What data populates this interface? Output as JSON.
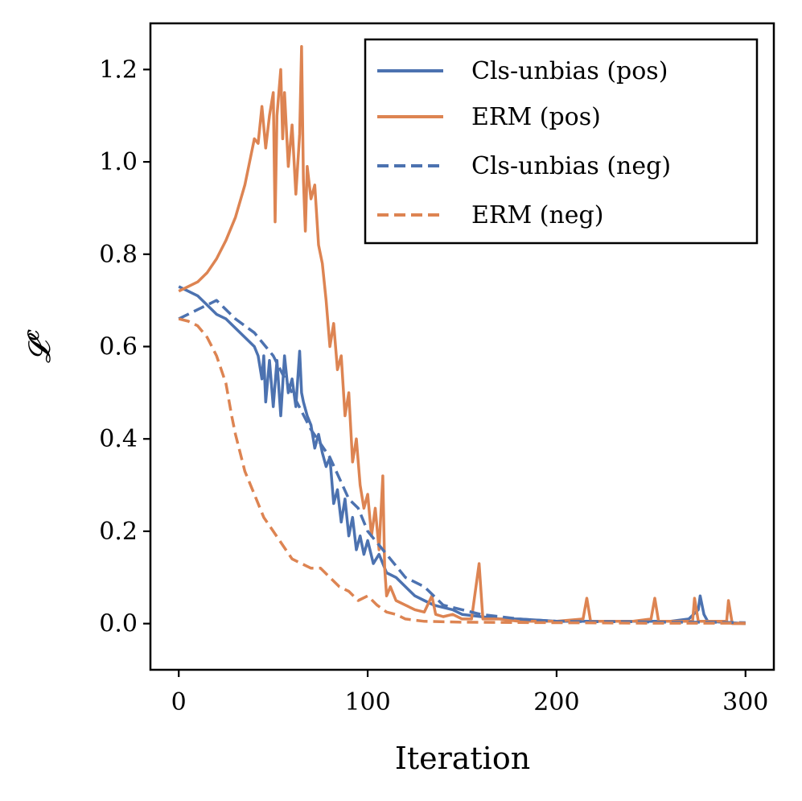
{
  "chart_data": {
    "type": "line",
    "title": "",
    "xlabel": "Iteration",
    "ylabel": "𝓛",
    "ylabel_sup": "c",
    "xlim": [
      -15,
      315
    ],
    "ylim": [
      -0.1,
      1.3
    ],
    "xticks": [
      0,
      100,
      200,
      300
    ],
    "yticks": [
      0.0,
      0.2,
      0.4,
      0.6,
      0.8,
      1.0,
      1.2
    ],
    "xtick_labels": [
      "0",
      "100",
      "200",
      "300"
    ],
    "ytick_labels": [
      "0.0",
      "0.2",
      "0.4",
      "0.6",
      "0.8",
      "1.0",
      "1.2"
    ],
    "grid": false,
    "legend_position": "top-right",
    "series": [
      {
        "name": "Cls-unbias (pos)",
        "color": "#4c72b0",
        "style": "solid",
        "points": [
          [
            0,
            0.73
          ],
          [
            5,
            0.72
          ],
          [
            10,
            0.71
          ],
          [
            15,
            0.69
          ],
          [
            20,
            0.67
          ],
          [
            25,
            0.66
          ],
          [
            30,
            0.64
          ],
          [
            35,
            0.62
          ],
          [
            40,
            0.6
          ],
          [
            42,
            0.58
          ],
          [
            44,
            0.53
          ],
          [
            45,
            0.58
          ],
          [
            46,
            0.48
          ],
          [
            48,
            0.57
          ],
          [
            50,
            0.47
          ],
          [
            52,
            0.57
          ],
          [
            54,
            0.45
          ],
          [
            56,
            0.58
          ],
          [
            58,
            0.5
          ],
          [
            60,
            0.53
          ],
          [
            62,
            0.47
          ],
          [
            64,
            0.59
          ],
          [
            65,
            0.5
          ],
          [
            66,
            0.48
          ],
          [
            68,
            0.45
          ],
          [
            70,
            0.43
          ],
          [
            72,
            0.38
          ],
          [
            74,
            0.41
          ],
          [
            76,
            0.37
          ],
          [
            78,
            0.34
          ],
          [
            80,
            0.36
          ],
          [
            82,
            0.26
          ],
          [
            84,
            0.29
          ],
          [
            86,
            0.22
          ],
          [
            88,
            0.27
          ],
          [
            90,
            0.19
          ],
          [
            92,
            0.23
          ],
          [
            94,
            0.16
          ],
          [
            96,
            0.19
          ],
          [
            98,
            0.15
          ],
          [
            100,
            0.18
          ],
          [
            103,
            0.13
          ],
          [
            106,
            0.15
          ],
          [
            110,
            0.11
          ],
          [
            115,
            0.1
          ],
          [
            120,
            0.08
          ],
          [
            125,
            0.06
          ],
          [
            130,
            0.05
          ],
          [
            135,
            0.04
          ],
          [
            140,
            0.035
          ],
          [
            145,
            0.03
          ],
          [
            150,
            0.02
          ],
          [
            160,
            0.015
          ],
          [
            170,
            0.01
          ],
          [
            180,
            0.01
          ],
          [
            200,
            0.005
          ],
          [
            220,
            0.005
          ],
          [
            240,
            0.005
          ],
          [
            260,
            0.005
          ],
          [
            270,
            0.01
          ],
          [
            275,
            0.03
          ],
          [
            276,
            0.06
          ],
          [
            278,
            0.02
          ],
          [
            280,
            0.005
          ],
          [
            300,
            0.0
          ]
        ]
      },
      {
        "name": "ERM (pos)",
        "color": "#dd8452",
        "style": "solid",
        "points": [
          [
            0,
            0.72
          ],
          [
            5,
            0.73
          ],
          [
            10,
            0.74
          ],
          [
            15,
            0.76
          ],
          [
            20,
            0.79
          ],
          [
            25,
            0.83
          ],
          [
            30,
            0.88
          ],
          [
            35,
            0.95
          ],
          [
            38,
            1.01
          ],
          [
            40,
            1.05
          ],
          [
            42,
            1.04
          ],
          [
            44,
            1.12
          ],
          [
            46,
            1.03
          ],
          [
            48,
            1.1
          ],
          [
            50,
            1.15
          ],
          [
            51,
            0.87
          ],
          [
            52,
            1.1
          ],
          [
            54,
            1.2
          ],
          [
            55,
            1.05
          ],
          [
            56,
            1.15
          ],
          [
            58,
            0.99
          ],
          [
            60,
            1.08
          ],
          [
            62,
            0.93
          ],
          [
            64,
            1.06
          ],
          [
            65,
            1.25
          ],
          [
            66,
            0.96
          ],
          [
            67,
            0.85
          ],
          [
            68,
            0.99
          ],
          [
            70,
            0.92
          ],
          [
            72,
            0.95
          ],
          [
            74,
            0.82
          ],
          [
            76,
            0.78
          ],
          [
            78,
            0.7
          ],
          [
            80,
            0.6
          ],
          [
            82,
            0.65
          ],
          [
            84,
            0.55
          ],
          [
            86,
            0.58
          ],
          [
            88,
            0.45
          ],
          [
            90,
            0.5
          ],
          [
            92,
            0.35
          ],
          [
            94,
            0.4
          ],
          [
            96,
            0.3
          ],
          [
            98,
            0.25
          ],
          [
            100,
            0.28
          ],
          [
            102,
            0.19
          ],
          [
            104,
            0.25
          ],
          [
            106,
            0.16
          ],
          [
            108,
            0.32
          ],
          [
            109,
            0.12
          ],
          [
            110,
            0.06
          ],
          [
            112,
            0.08
          ],
          [
            115,
            0.05
          ],
          [
            120,
            0.04
          ],
          [
            125,
            0.03
          ],
          [
            130,
            0.025
          ],
          [
            134,
            0.06
          ],
          [
            136,
            0.02
          ],
          [
            140,
            0.015
          ],
          [
            145,
            0.02
          ],
          [
            150,
            0.01
          ],
          [
            155,
            0.01
          ],
          [
            159,
            0.13
          ],
          [
            161,
            0.01
          ],
          [
            170,
            0.01
          ],
          [
            180,
            0.005
          ],
          [
            200,
            0.005
          ],
          [
            214,
            0.01
          ],
          [
            216,
            0.055
          ],
          [
            218,
            0.005
          ],
          [
            240,
            0.005
          ],
          [
            250,
            0.01
          ],
          [
            252,
            0.055
          ],
          [
            254,
            0.005
          ],
          [
            272,
            0.005
          ],
          [
            273,
            0.055
          ],
          [
            275,
            0.005
          ],
          [
            290,
            0.005
          ],
          [
            291,
            0.05
          ],
          [
            293,
            0.0
          ],
          [
            300,
            0.0
          ]
        ]
      },
      {
        "name": "Cls-unbias (neg)",
        "color": "#4c72b0",
        "style": "dashed",
        "points": [
          [
            0,
            0.66
          ],
          [
            10,
            0.68
          ],
          [
            20,
            0.7
          ],
          [
            30,
            0.66
          ],
          [
            40,
            0.63
          ],
          [
            50,
            0.58
          ],
          [
            60,
            0.5
          ],
          [
            70,
            0.42
          ],
          [
            80,
            0.36
          ],
          [
            90,
            0.27
          ],
          [
            95,
            0.25
          ],
          [
            100,
            0.2
          ],
          [
            110,
            0.15
          ],
          [
            120,
            0.1
          ],
          [
            130,
            0.08
          ],
          [
            140,
            0.04
          ],
          [
            150,
            0.03
          ],
          [
            160,
            0.02
          ],
          [
            170,
            0.015
          ],
          [
            180,
            0.01
          ],
          [
            200,
            0.005
          ],
          [
            220,
            0.004
          ],
          [
            240,
            0.004
          ],
          [
            260,
            0.003
          ],
          [
            280,
            0.003
          ],
          [
            300,
            0.002
          ]
        ]
      },
      {
        "name": "ERM (neg)",
        "color": "#dd8452",
        "style": "dashed",
        "points": [
          [
            0,
            0.66
          ],
          [
            5,
            0.655
          ],
          [
            10,
            0.645
          ],
          [
            15,
            0.62
          ],
          [
            20,
            0.58
          ],
          [
            25,
            0.52
          ],
          [
            28,
            0.45
          ],
          [
            30,
            0.41
          ],
          [
            35,
            0.33
          ],
          [
            40,
            0.28
          ],
          [
            45,
            0.23
          ],
          [
            50,
            0.2
          ],
          [
            55,
            0.17
          ],
          [
            60,
            0.14
          ],
          [
            65,
            0.13
          ],
          [
            70,
            0.12
          ],
          [
            75,
            0.12
          ],
          [
            80,
            0.1
          ],
          [
            85,
            0.08
          ],
          [
            90,
            0.07
          ],
          [
            95,
            0.05
          ],
          [
            100,
            0.06
          ],
          [
            105,
            0.04
          ],
          [
            110,
            0.025
          ],
          [
            115,
            0.02
          ],
          [
            120,
            0.01
          ],
          [
            130,
            0.005
          ],
          [
            150,
            0.003
          ],
          [
            200,
            0.002
          ],
          [
            250,
            0.001
          ],
          [
            300,
            0.001
          ]
        ]
      }
    ]
  }
}
